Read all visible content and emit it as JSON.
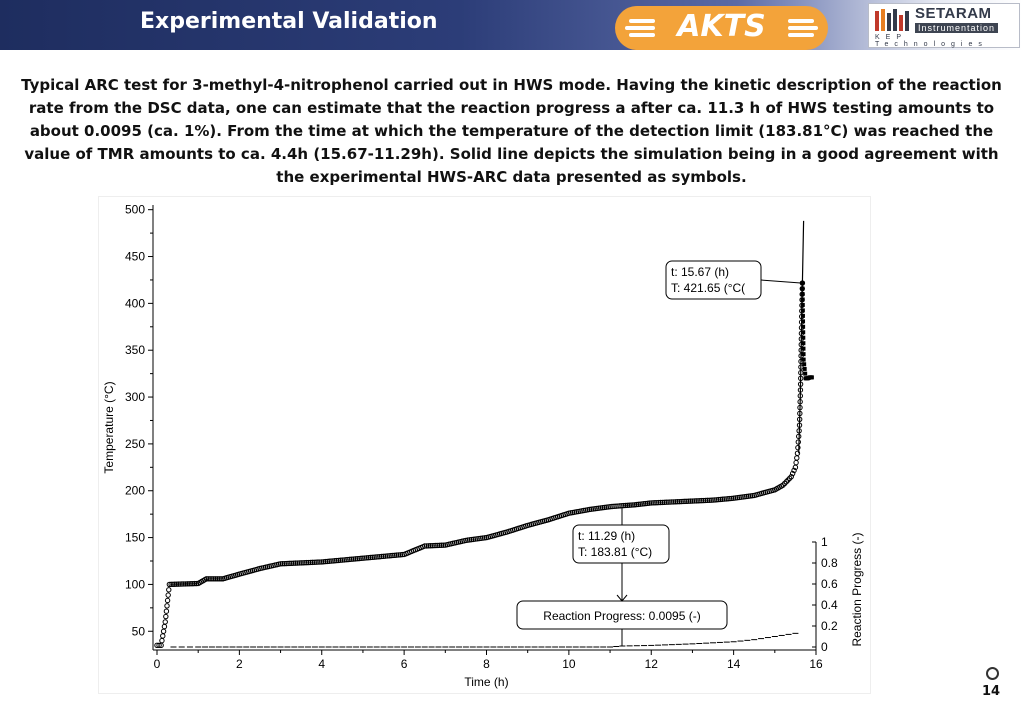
{
  "slide": {
    "title": "Experimental Validation",
    "page_number": "14",
    "header_color": "#1e2d5f"
  },
  "logos": {
    "akts": {
      "text": "AKTS",
      "color": "#f3a33a"
    },
    "setaram": {
      "name": "SETARAM",
      "subtitle": "Instrumentation",
      "tagline": "KEP Technologies"
    }
  },
  "description": "Typical ARC test for 3-methyl-4-nitrophenol carried out in HWS mode. Having the kinetic description of the reaction rate from the DSC data, one can estimate that the reaction progress a after ca. 11.3 h of HWS testing amounts to about 0.0095 (ca. 1%). From the time at which the temperature of the detection limit (183.81°C) was reached the value of TMR amounts to ca. 4.4h (15.67-11.29h). Solid line depicts the simulation being in a good agreement with the experimental HWS-ARC data presented as symbols.",
  "chart_data": {
    "type": "line",
    "xlabel": "Time (h)",
    "ylabel": "Temperature (°C)",
    "y2label": "Reaction Progress (-)",
    "xlim": [
      0,
      16
    ],
    "ylim": [
      30,
      505
    ],
    "y2lim": [
      0,
      1
    ],
    "x_ticks": [
      0,
      2,
      4,
      6,
      8,
      10,
      12,
      14,
      16
    ],
    "y_ticks": [
      50,
      100,
      150,
      200,
      250,
      300,
      350,
      400,
      450,
      500
    ],
    "y2_ticks": [
      0,
      0.2,
      0.4,
      0.6,
      0.8,
      1
    ],
    "y2_tick_labels": [
      "0",
      "0.2",
      "0.4",
      "0.6",
      "0.8",
      "1"
    ],
    "grid": false,
    "series": [
      {
        "role": "experimental temperature",
        "marker": "circle",
        "color": "#000000",
        "x": [
          0.0,
          0.1,
          0.2,
          0.3,
          1.0,
          1.2,
          1.6,
          2.0,
          2.5,
          3.0,
          3.5,
          4.0,
          4.5,
          5.0,
          5.5,
          6.0,
          6.5,
          7.0,
          7.5,
          8.0,
          8.5,
          9.0,
          9.5,
          10.0,
          10.5,
          11.0,
          11.29,
          11.6,
          12.0,
          12.5,
          13.0,
          13.5,
          14.0,
          14.5,
          15.0,
          15.2,
          15.4,
          15.5,
          15.55,
          15.6,
          15.63,
          15.65,
          15.67
        ],
        "y": [
          35,
          35,
          60,
          100,
          101,
          106,
          106,
          111,
          117,
          122,
          123,
          124,
          126,
          128,
          130,
          132,
          141,
          142,
          147,
          150,
          156,
          163,
          169,
          176,
          180,
          183,
          184,
          185,
          187,
          188,
          189,
          190,
          192,
          195,
          201,
          206,
          215,
          225,
          240,
          270,
          320,
          380,
          421.65
        ]
      },
      {
        "role": "experimental temperature after runaway",
        "marker": "square",
        "color": "#000000",
        "x": [
          15.67,
          15.7,
          15.75,
          15.8,
          15.85,
          15.9
        ],
        "y": [
          421.65,
          340,
          320,
          320,
          321,
          321
        ]
      },
      {
        "role": "simulation",
        "marker": "none",
        "color": "#000000",
        "x": [
          15.58,
          15.62,
          15.65,
          15.67,
          15.7
        ],
        "y": [
          240,
          300,
          380,
          421.65,
          488
        ]
      },
      {
        "role": "reaction progress",
        "axis": "y2",
        "marker": "dash",
        "color": "#000000",
        "x": [
          0.4,
          1.0,
          2.0,
          3.0,
          4.0,
          5.0,
          6.0,
          7.0,
          8.0,
          9.0,
          10.0,
          11.0,
          11.3,
          12.0,
          13.0,
          14.0,
          14.5,
          15.0,
          15.5
        ],
        "y": [
          0.0,
          0.0,
          0.0,
          0.0,
          0.0,
          0.0,
          0.0,
          0.0,
          0.0,
          0.0,
          0.0,
          0.0,
          0.0095,
          0.015,
          0.03,
          0.05,
          0.07,
          0.1,
          0.13
        ]
      }
    ],
    "annotations": [
      {
        "lines": [
          "t: 15.67 (h)",
          "T: 421.65 (°C("
        ],
        "x": 15.67,
        "y": 421.65
      },
      {
        "lines": [
          "t: 11.29 (h)",
          "T: 183.81 (°C)"
        ],
        "x": 11.29,
        "y": 183.81
      },
      {
        "lines": [
          "Reaction Progress: 0.0095 (-)"
        ],
        "x": 11.29,
        "y2": 0.0095
      }
    ]
  }
}
